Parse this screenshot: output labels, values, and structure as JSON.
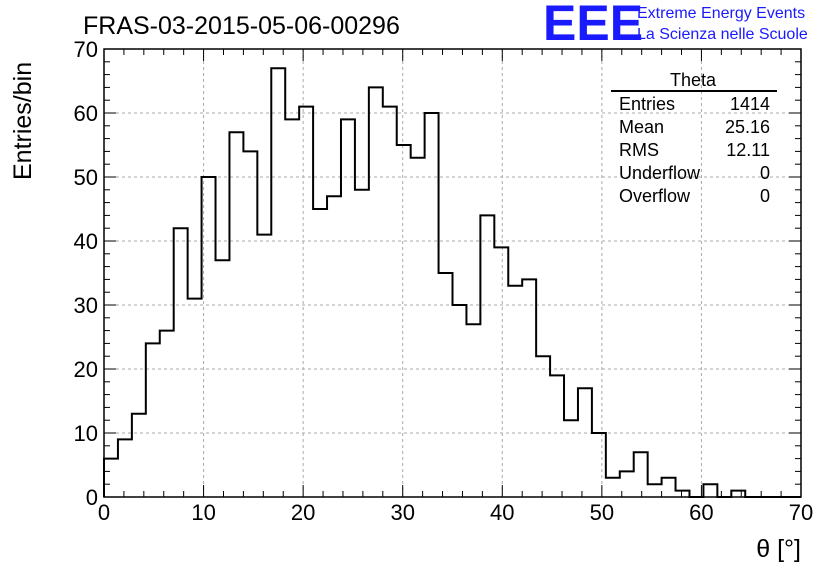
{
  "chart_data": {
    "type": "bar",
    "title": "FRAS-03-2015-05-06-00296",
    "xlabel": "θ [°]",
    "ylabel": "Entries/bin",
    "xlim": [
      0,
      70
    ],
    "ylim": [
      0,
      70
    ],
    "bin_width": 1.4,
    "x_ticks": [
      0,
      10,
      20,
      30,
      40,
      50,
      60,
      70
    ],
    "y_ticks": [
      0,
      10,
      20,
      30,
      40,
      50,
      60,
      70
    ],
    "grid": true,
    "values": [
      6,
      9,
      13,
      24,
      26,
      42,
      31,
      50,
      37,
      57,
      54,
      41,
      67,
      59,
      61,
      45,
      47,
      59,
      48,
      64,
      61,
      55,
      53,
      60,
      35,
      30,
      27,
      44,
      39,
      33,
      34,
      22,
      19,
      12,
      17,
      10,
      3,
      4,
      7,
      2,
      3,
      1,
      0,
      2,
      0,
      1,
      0,
      0,
      0,
      0
    ],
    "stats": {
      "name": "Theta",
      "rows": [
        {
          "label": "Entries",
          "value": "1414"
        },
        {
          "label": "Mean",
          "value": "25.16"
        },
        {
          "label": "RMS",
          "value": "12.11"
        },
        {
          "label": "Underflow",
          "value": "0"
        },
        {
          "label": "Overflow",
          "value": "0"
        }
      ]
    }
  },
  "brand": {
    "logo": "EEE",
    "line1": "Extreme Energy Events",
    "line2": "La Scienza nelle Scuole",
    "color": "#1a1aff"
  }
}
